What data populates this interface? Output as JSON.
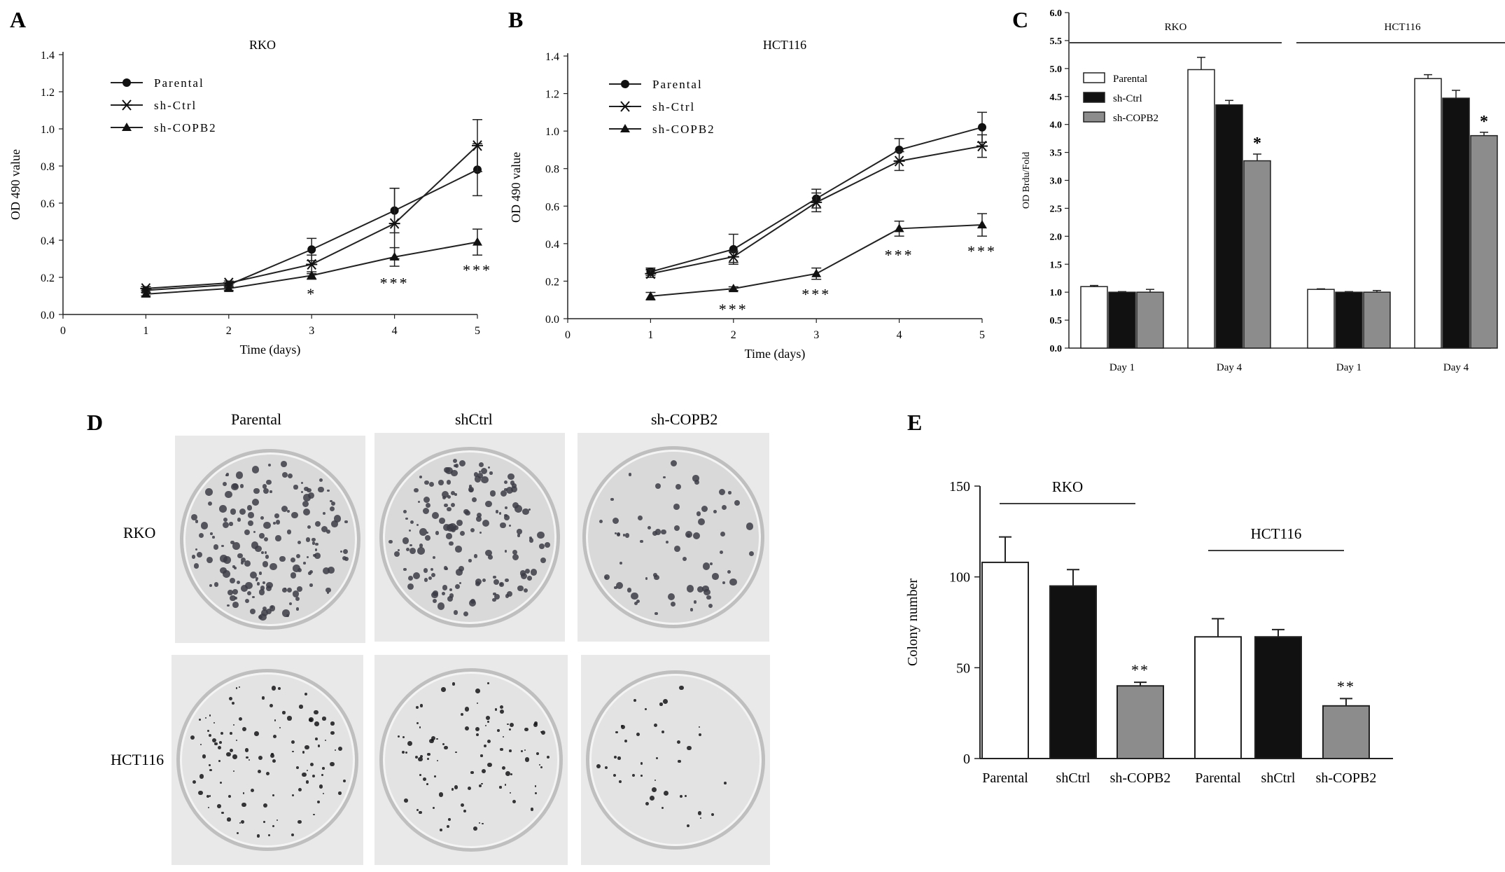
{
  "panel_letters": {
    "A": "A",
    "B": "B",
    "C": "C",
    "D": "D",
    "E": "E"
  },
  "chart_data": [
    {
      "id": "A",
      "type": "line",
      "title": "RKO",
      "xlabel": "Time (days)",
      "ylabel": "OD 490 value",
      "xlim": [
        0,
        5
      ],
      "ylim": [
        0,
        1.4
      ],
      "x_ticks": [
        "0",
        "1",
        "2",
        "3",
        "4",
        "5"
      ],
      "y_ticks": [
        "0.0",
        "0.2",
        "0.4",
        "0.6",
        "0.8",
        "1.0",
        "1.2",
        "1.4"
      ],
      "x": [
        1,
        2,
        3,
        4,
        5
      ],
      "series": [
        {
          "name": "Parental",
          "marker": "circle",
          "values": [
            0.13,
            0.16,
            0.35,
            0.56,
            0.78
          ],
          "errors": [
            0.01,
            0.01,
            0.06,
            0.12,
            0.14
          ]
        },
        {
          "name": "sh-Ctrl",
          "marker": "star",
          "values": [
            0.14,
            0.17,
            0.27,
            0.49,
            0.91
          ],
          "errors": [
            0.01,
            0.01,
            0.05,
            0.19,
            0.14
          ]
        },
        {
          "name": "sh-COPB2",
          "marker": "triangle",
          "values": [
            0.11,
            0.14,
            0.21,
            0.31,
            0.39
          ],
          "errors": [
            0.01,
            0.01,
            0.02,
            0.05,
            0.07
          ]
        }
      ],
      "annotations": [
        {
          "x": 3,
          "y": 0.12,
          "text": "*"
        },
        {
          "x": 4,
          "y": 0.18,
          "text": "***"
        },
        {
          "x": 5,
          "y": 0.25,
          "text": "***"
        }
      ],
      "legend": "top-left"
    },
    {
      "id": "B",
      "type": "line",
      "title": "HCT116",
      "xlabel": "Time (days)",
      "ylabel": "OD 490 value",
      "xlim": [
        0,
        5
      ],
      "ylim": [
        0,
        1.4
      ],
      "x_ticks": [
        "0",
        "1",
        "2",
        "3",
        "4",
        "5"
      ],
      "y_ticks": [
        "0.0",
        "0.2",
        "0.4",
        "0.6",
        "0.8",
        "1.0",
        "1.2",
        "1.4"
      ],
      "x": [
        1,
        2,
        3,
        4,
        5
      ],
      "series": [
        {
          "name": "Parental",
          "marker": "circle",
          "values": [
            0.25,
            0.37,
            0.64,
            0.9,
            1.02
          ],
          "errors": [
            0.02,
            0.08,
            0.05,
            0.06,
            0.08
          ]
        },
        {
          "name": "sh-Ctrl",
          "marker": "star",
          "values": [
            0.24,
            0.33,
            0.62,
            0.84,
            0.92
          ],
          "errors": [
            0.02,
            0.03,
            0.05,
            0.05,
            0.06
          ]
        },
        {
          "name": "sh-COPB2",
          "marker": "triangle",
          "values": [
            0.12,
            0.16,
            0.24,
            0.48,
            0.5
          ],
          "errors": [
            0.02,
            0.01,
            0.03,
            0.04,
            0.06
          ]
        }
      ],
      "annotations": [
        {
          "x": 2,
          "y": 0.06,
          "text": "***"
        },
        {
          "x": 3,
          "y": 0.14,
          "text": "***"
        },
        {
          "x": 4,
          "y": 0.35,
          "text": "***"
        },
        {
          "x": 5,
          "y": 0.37,
          "text": "***"
        }
      ],
      "legend": "top-left"
    },
    {
      "id": "C",
      "type": "bar",
      "ylabel": "OD Brdu/Fold",
      "ylim": [
        0,
        6
      ],
      "y_ticks": [
        "0.0",
        "0.5",
        "1.0",
        "1.5",
        "2.0",
        "2.5",
        "3.0",
        "3.5",
        "4.0",
        "4.5",
        "5.0",
        "5.5",
        "6.0"
      ],
      "categories": [
        "Day 1",
        "Day 4",
        "Day 1",
        "Day 4"
      ],
      "groups": [
        {
          "name": "RKO",
          "span": [
            0,
            1
          ]
        },
        {
          "name": "HCT116",
          "span": [
            2,
            3
          ]
        }
      ],
      "series": [
        {
          "name": "Parental",
          "fill": "#ffffff",
          "values": [
            1.1,
            4.98,
            1.05,
            4.82
          ],
          "errors": [
            0.02,
            0.22,
            0.01,
            0.07
          ]
        },
        {
          "name": "sh-Ctrl",
          "fill": "#111111",
          "values": [
            1.0,
            4.35,
            1.0,
            4.47
          ],
          "errors": [
            0.01,
            0.08,
            0.01,
            0.14
          ]
        },
        {
          "name": "sh-COPB2",
          "fill": "#8c8c8c",
          "values": [
            1.0,
            3.35,
            1.0,
            3.8
          ],
          "errors": [
            0.05,
            0.12,
            0.03,
            0.06
          ]
        }
      ],
      "annotations": [
        {
          "category": 1,
          "series": 2,
          "text": "*"
        },
        {
          "category": 3,
          "series": 2,
          "text": "*"
        }
      ],
      "legend": "top-left"
    },
    {
      "id": "E",
      "type": "bar",
      "ylabel": "Colony number",
      "ylim": [
        0,
        150
      ],
      "y_ticks": [
        "0",
        "50",
        "100",
        "150"
      ],
      "categories": [
        "Parental",
        "shCtrl",
        "sh-COPB2",
        "Parental",
        "shCtrl",
        "sh-COPB2"
      ],
      "groups": [
        {
          "name": "RKO",
          "span": [
            0,
            2
          ]
        },
        {
          "name": "HCT116",
          "span": [
            3,
            5
          ]
        }
      ],
      "fills": [
        "#ffffff",
        "#111111",
        "#8c8c8c",
        "#ffffff",
        "#111111",
        "#8c8c8c"
      ],
      "values": [
        108,
        95,
        40,
        67,
        67,
        29
      ],
      "errors": [
        14,
        9,
        2,
        10,
        4,
        4
      ],
      "annotations": [
        {
          "category": 2,
          "text": "**"
        },
        {
          "category": 5,
          "text": "**"
        }
      ]
    }
  ],
  "colony_panel": {
    "columns": [
      "Parental",
      "shCtrl",
      "sh-COPB2"
    ],
    "rows": [
      "RKO",
      "HCT116"
    ]
  }
}
